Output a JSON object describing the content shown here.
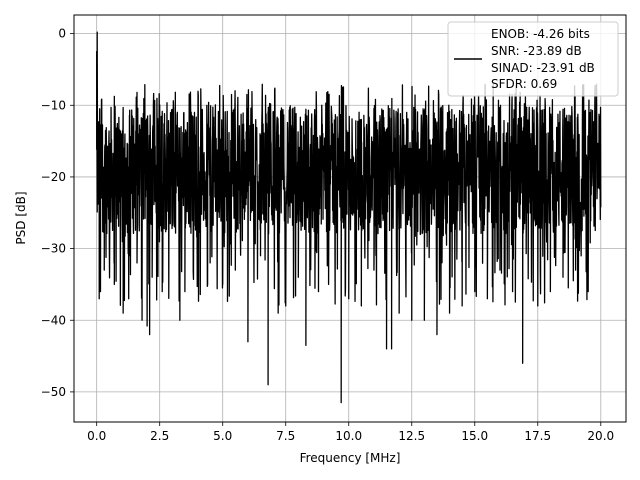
{
  "chart_data": {
    "type": "line",
    "title": "",
    "xlabel": "Frequency [MHz]",
    "ylabel": "PSD [dB]",
    "xlim": [
      -0.9,
      21.0
    ],
    "ylim": [
      -54.2,
      2.6
    ],
    "xticks": [
      0.0,
      2.5,
      5.0,
      7.5,
      10.0,
      12.5,
      15.0,
      17.5,
      20.0
    ],
    "xtick_labels": [
      "0.0",
      "2.5",
      "5.0",
      "7.5",
      "10.0",
      "12.5",
      "15.0",
      "17.5",
      "20.0"
    ],
    "yticks": [
      0,
      -10,
      -20,
      -30,
      -40,
      -50
    ],
    "ytick_labels": [
      "0",
      "−10",
      "−20",
      "−30",
      "−40",
      "−50"
    ],
    "grid": true,
    "legend_position": "top-right",
    "line_color": "#000000",
    "series": [
      {
        "name": "",
        "style": "noise-floor",
        "x_range": [
          0.0,
          20.0
        ],
        "typical_range": [
          -28,
          -10
        ],
        "envelope_max": -7,
        "x": [
          0.0,
          0.02,
          0.05,
          0.1,
          0.15,
          0.3,
          0.5,
          0.7,
          1.0,
          1.05,
          1.3,
          1.6,
          1.8,
          2.0,
          2.1,
          2.2,
          2.6,
          3.3,
          3.5,
          4.0,
          4.5,
          5.0,
          5.5,
          6.0,
          6.5,
          6.8,
          7.2,
          7.5,
          8.0,
          8.3,
          8.8,
          9.2,
          9.7,
          10.0,
          10.5,
          11.0,
          11.5,
          11.7,
          12.0,
          12.5,
          13.0,
          13.5,
          14.0,
          14.5,
          15.0,
          15.5,
          16.0,
          16.5,
          16.9,
          17.5,
          18.0,
          18.5,
          19.0,
          19.5,
          20.0
        ],
        "y": [
          -2.5,
          0.2,
          -14.5,
          -37.0,
          -36.0,
          -33.0,
          -29.0,
          -35.0,
          -14.0,
          -39.0,
          -31.0,
          -32.0,
          -40.0,
          -40.8,
          -42.0,
          -34.0,
          -36.0,
          -40.0,
          -36.0,
          -34.0,
          -32.0,
          -35.0,
          -33.0,
          -43.0,
          -31.0,
          -49.0,
          -39.0,
          -38.0,
          -34.0,
          -43.5,
          -36.0,
          -35.0,
          -51.5,
          -37.0,
          -38.0,
          -33.0,
          -44.0,
          -44.0,
          -39.0,
          -40.0,
          -40.0,
          -42.0,
          -39.0,
          -38.0,
          -36.0,
          -37.0,
          -33.0,
          -36.0,
          -46.0,
          -38.0,
          -36.0,
          -34.0,
          -33.0,
          -36.0,
          -24.0
        ]
      }
    ],
    "legend": {
      "lines": [
        "ENOB: -4.26 bits",
        "SNR: -23.89 dB",
        "SINAD: -23.91 dB",
        "SFDR: 0.69"
      ]
    }
  }
}
